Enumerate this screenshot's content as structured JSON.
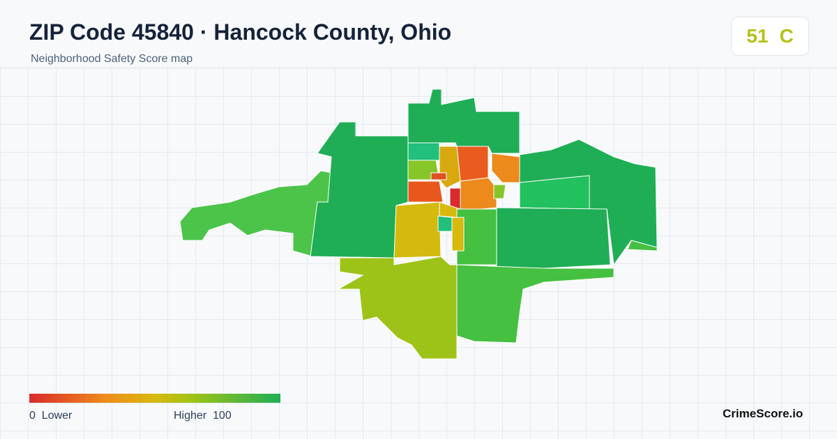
{
  "header": {
    "title": "ZIP Code 45840 · Hancock County, Ohio",
    "subtitle": "Neighborhood Safety Score map"
  },
  "score": {
    "value": 51,
    "grade": "C"
  },
  "legend": {
    "min": 0,
    "min_label": "Lower",
    "max_label": "Higher",
    "max": 100
  },
  "brand": "CrimeScore.io"
}
